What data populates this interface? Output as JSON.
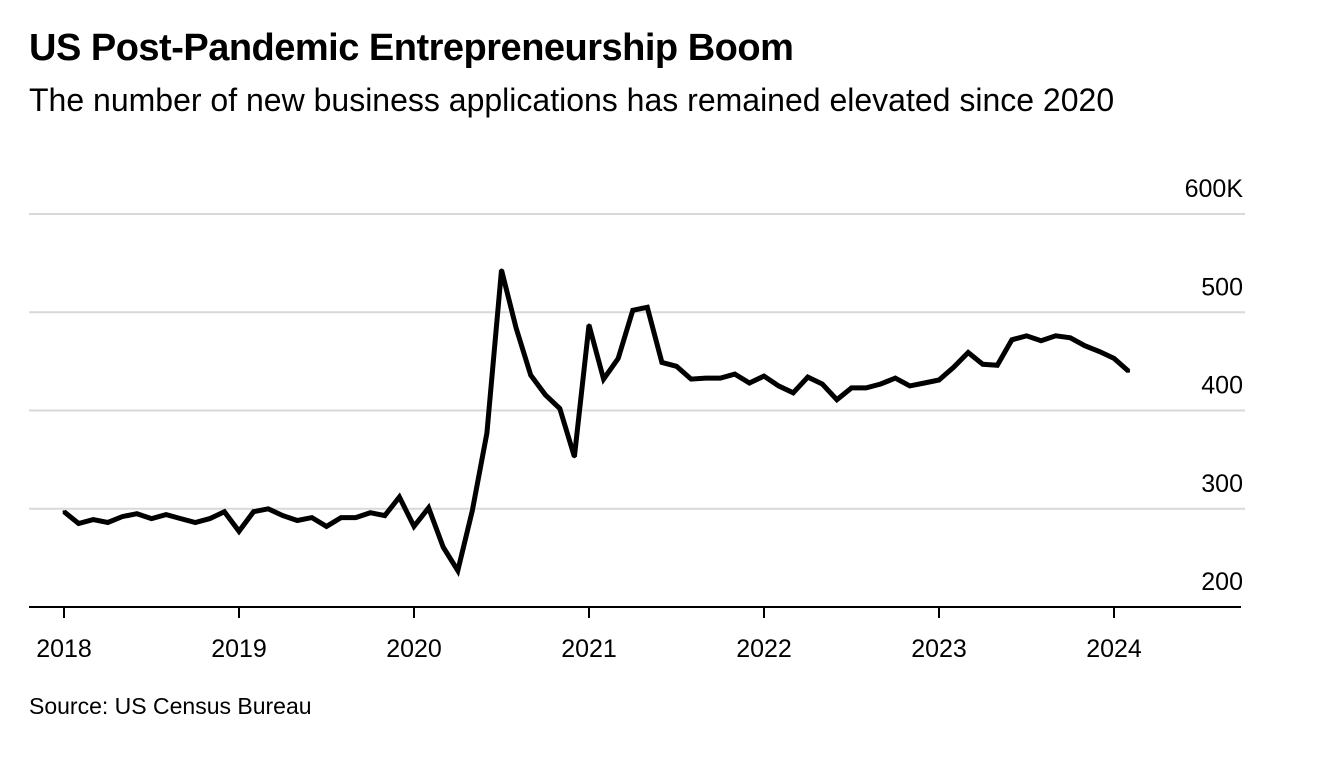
{
  "title": "US Post-Pandemic Entrepreneurship Boom",
  "subtitle": "The number of new business applications has remained elevated since 2020",
  "source": "Source: US Census Bureau",
  "chart_data": {
    "type": "line",
    "title": "US Post-Pandemic Entrepreneurship Boom",
    "subtitle": "The number of new business applications has remained elevated since 2020",
    "xlabel": "",
    "ylabel": "",
    "ylim": [
      200,
      600
    ],
    "xlim": [
      "2018-01",
      "2024-12"
    ],
    "x_ticks": [
      "2018",
      "2019",
      "2020",
      "2021",
      "2022",
      "2023",
      "2024"
    ],
    "y_ticks": [
      {
        "value": 200,
        "label": "200"
      },
      {
        "value": 300,
        "label": "300"
      },
      {
        "value": 400,
        "label": "400"
      },
      {
        "value": 500,
        "label": "500"
      },
      {
        "value": 600,
        "label": "600K"
      }
    ],
    "grid": true,
    "legend": "none",
    "line_color": "#000000",
    "grid_color": "#d9d9d9",
    "series": [
      {
        "x": [
          "2018-01",
          "2018-02",
          "2018-03",
          "2018-04",
          "2018-05",
          "2018-06",
          "2018-07",
          "2018-08",
          "2018-09",
          "2018-10",
          "2018-11",
          "2018-12",
          "2019-01",
          "2019-02",
          "2019-03",
          "2019-04",
          "2019-05",
          "2019-06",
          "2019-07",
          "2019-08",
          "2019-09",
          "2019-10",
          "2019-11",
          "2019-12",
          "2020-01",
          "2020-02",
          "2020-03",
          "2020-04",
          "2020-05",
          "2020-06",
          "2020-07",
          "2020-08",
          "2020-09",
          "2020-10",
          "2020-11",
          "2020-12",
          "2021-01",
          "2021-02",
          "2021-03",
          "2021-04",
          "2021-05",
          "2021-06",
          "2021-07",
          "2021-08",
          "2021-09",
          "2021-10",
          "2021-11",
          "2021-12",
          "2022-01",
          "2022-02",
          "2022-03",
          "2022-04",
          "2022-05",
          "2022-06",
          "2022-07",
          "2022-08",
          "2022-09",
          "2022-10",
          "2022-11",
          "2022-12",
          "2023-01",
          "2023-02",
          "2023-03",
          "2023-04",
          "2023-05",
          "2023-06",
          "2023-07",
          "2023-08",
          "2023-09",
          "2023-10",
          "2023-11",
          "2023-12",
          "2024-01",
          "2024-02"
        ],
        "values": [
          297,
          285,
          289,
          286,
          292,
          295,
          290,
          294,
          290,
          286,
          290,
          297,
          277,
          297,
          300,
          293,
          288,
          291,
          282,
          291,
          291,
          296,
          293,
          312,
          282,
          301,
          261,
          237,
          298,
          377,
          543,
          484,
          436,
          416,
          402,
          353,
          487,
          432,
          453,
          502,
          505,
          449,
          445,
          432,
          433,
          433,
          437,
          428,
          435,
          425,
          418,
          434,
          427,
          411,
          423,
          423,
          427,
          433,
          425,
          428,
          431,
          444,
          459,
          447,
          446,
          472,
          476,
          471,
          476,
          474,
          466,
          460,
          453,
          440
        ]
      }
    ]
  }
}
